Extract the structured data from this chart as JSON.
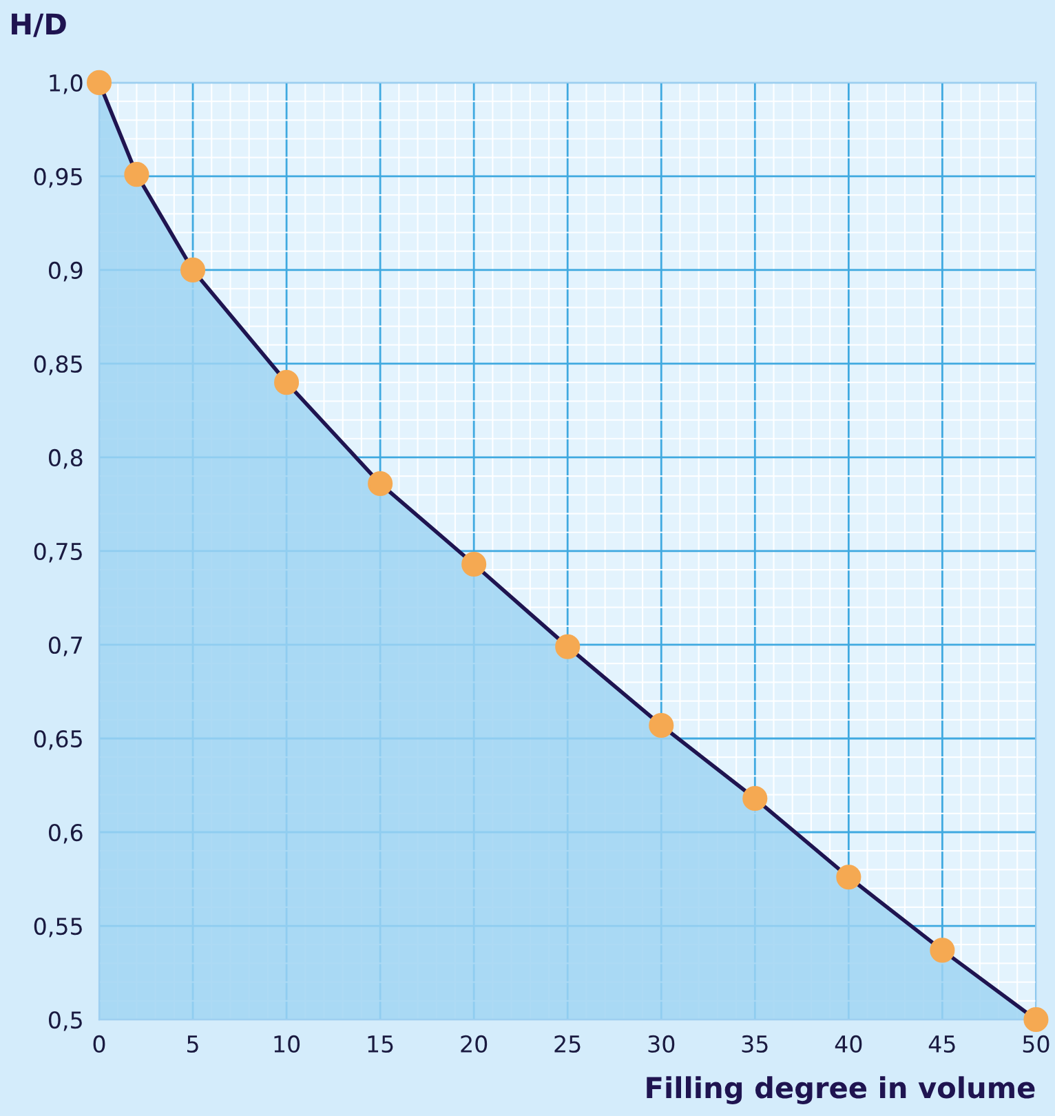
{
  "chart_data": {
    "type": "area",
    "xlabel": "Filling degree in volume",
    "ylabel": "H/D",
    "x": [
      0,
      2,
      5,
      10,
      15,
      20,
      25,
      30,
      35,
      40,
      45,
      50
    ],
    "series": [
      {
        "color": "#9fd3f2",
        "colors": [
          "#f5a952",
          "#f5a952",
          "#f5a952",
          "#f5a952",
          "#f5a952",
          "#f5a952",
          "#f5a952",
          "#f5a952",
          "#f5a952",
          "#f5a952",
          "#f5a952",
          "#f5a952"
        ],
        "values": [
          1.0,
          0.951,
          0.9,
          0.84,
          0.786,
          0.743,
          0.699,
          0.657,
          0.618,
          0.576,
          0.537,
          0.5
        ]
      }
    ],
    "marker": "circle",
    "xlim": [
      0,
      50
    ],
    "ylim": [
      0.5,
      1.0
    ],
    "xticks": [
      0,
      5,
      10,
      15,
      20,
      25,
      30,
      35,
      40,
      45,
      50
    ],
    "yticks": [
      {
        "value": 0.5,
        "label": "0,5"
      },
      {
        "value": 0.55,
        "label": "0,55"
      },
      {
        "value": 0.6,
        "label": "0,6"
      },
      {
        "value": 0.65,
        "label": "0,65"
      },
      {
        "value": 0.7,
        "label": "0,7"
      },
      {
        "value": 0.75,
        "label": "0,75"
      },
      {
        "value": 0.8,
        "label": "0,8"
      },
      {
        "value": 0.85,
        "label": "0,85"
      },
      {
        "value": 0.9,
        "label": "0,9"
      },
      {
        "value": 0.95,
        "label": "0,95"
      },
      {
        "value": 1.0,
        "label": "1,0"
      }
    ],
    "grid": true,
    "line_style": "solid"
  }
}
